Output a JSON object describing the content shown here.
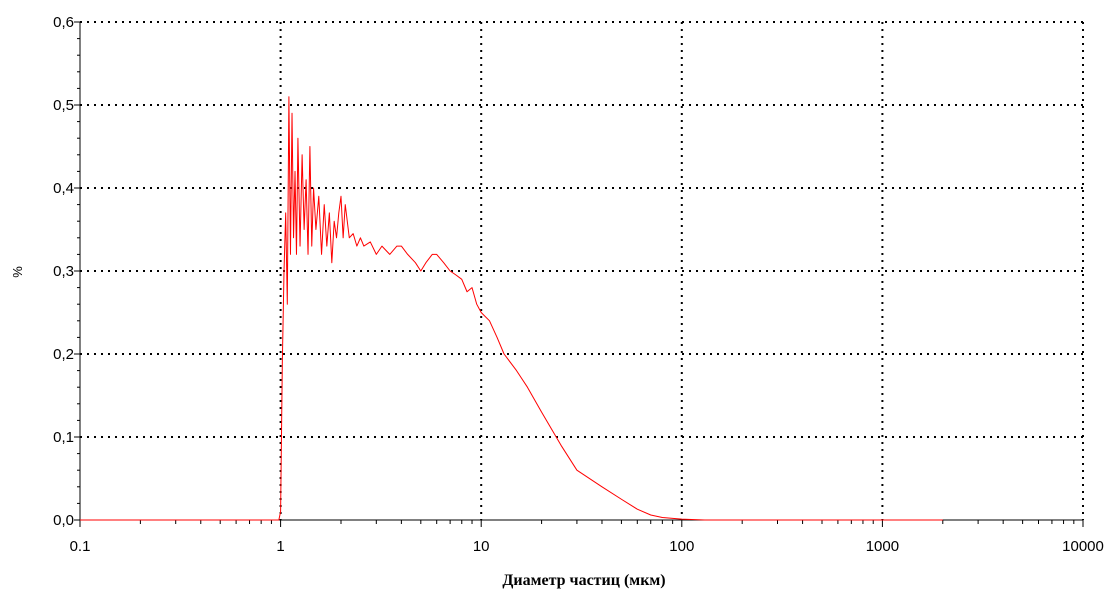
{
  "chart_data": {
    "type": "line",
    "xscale": "log",
    "xlim": [
      0.1,
      10000
    ],
    "ylim": [
      0,
      0.6
    ],
    "xlabel": "Диаметр частиц (мкм)",
    "ylabel": "%",
    "grid": true,
    "x_ticks": [
      {
        "value": 0.1,
        "label": "0.1"
      },
      {
        "value": 1,
        "label": "1"
      },
      {
        "value": 10,
        "label": "10"
      },
      {
        "value": 100,
        "label": "100"
      },
      {
        "value": 1000,
        "label": "1000"
      },
      {
        "value": 10000,
        "label": "10000"
      }
    ],
    "y_ticks": [
      {
        "value": 0.0,
        "label": "0,0"
      },
      {
        "value": 0.1,
        "label": "0,1"
      },
      {
        "value": 0.2,
        "label": "0,2"
      },
      {
        "value": 0.3,
        "label": "0,3"
      },
      {
        "value": 0.4,
        "label": "0,4"
      },
      {
        "value": 0.5,
        "label": "0,5"
      },
      {
        "value": 0.6,
        "label": "0,6"
      }
    ],
    "series": [
      {
        "color": "#ff0000",
        "x": [
          0.1,
          0.5,
          0.98,
          1.0,
          1.02,
          1.04,
          1.06,
          1.08,
          1.1,
          1.12,
          1.14,
          1.16,
          1.18,
          1.2,
          1.22,
          1.25,
          1.28,
          1.31,
          1.34,
          1.37,
          1.4,
          1.43,
          1.46,
          1.5,
          1.55,
          1.6,
          1.65,
          1.7,
          1.75,
          1.8,
          1.85,
          1.9,
          1.95,
          2.0,
          2.05,
          2.1,
          2.2,
          2.3,
          2.4,
          2.5,
          2.6,
          2.8,
          3.0,
          3.2,
          3.5,
          3.8,
          4.0,
          4.3,
          4.7,
          5.0,
          5.3,
          5.7,
          6.0,
          6.5,
          7.0,
          7.5,
          8.0,
          8.5,
          9.0,
          9.5,
          10.0,
          11.0,
          12.0,
          13.0,
          15.0,
          17.0,
          20.0,
          25.0,
          30.0,
          40.0,
          50.0,
          60.0,
          70.0,
          80.0,
          100.0,
          130.0,
          200.0,
          500.0,
          2000.0
        ],
        "y": [
          0.0,
          0.0,
          0.0,
          0.01,
          0.19,
          0.3,
          0.37,
          0.26,
          0.51,
          0.32,
          0.49,
          0.34,
          0.42,
          0.32,
          0.46,
          0.33,
          0.44,
          0.35,
          0.41,
          0.32,
          0.45,
          0.33,
          0.4,
          0.35,
          0.39,
          0.32,
          0.38,
          0.33,
          0.37,
          0.31,
          0.36,
          0.34,
          0.37,
          0.39,
          0.34,
          0.38,
          0.34,
          0.345,
          0.33,
          0.34,
          0.33,
          0.335,
          0.32,
          0.33,
          0.32,
          0.33,
          0.33,
          0.32,
          0.31,
          0.3,
          0.31,
          0.32,
          0.32,
          0.31,
          0.3,
          0.295,
          0.29,
          0.275,
          0.28,
          0.26,
          0.25,
          0.24,
          0.22,
          0.2,
          0.18,
          0.16,
          0.13,
          0.09,
          0.06,
          0.04,
          0.025,
          0.013,
          0.006,
          0.003,
          0.001,
          0.0,
          0.0,
          0.0,
          0.0
        ]
      }
    ]
  }
}
